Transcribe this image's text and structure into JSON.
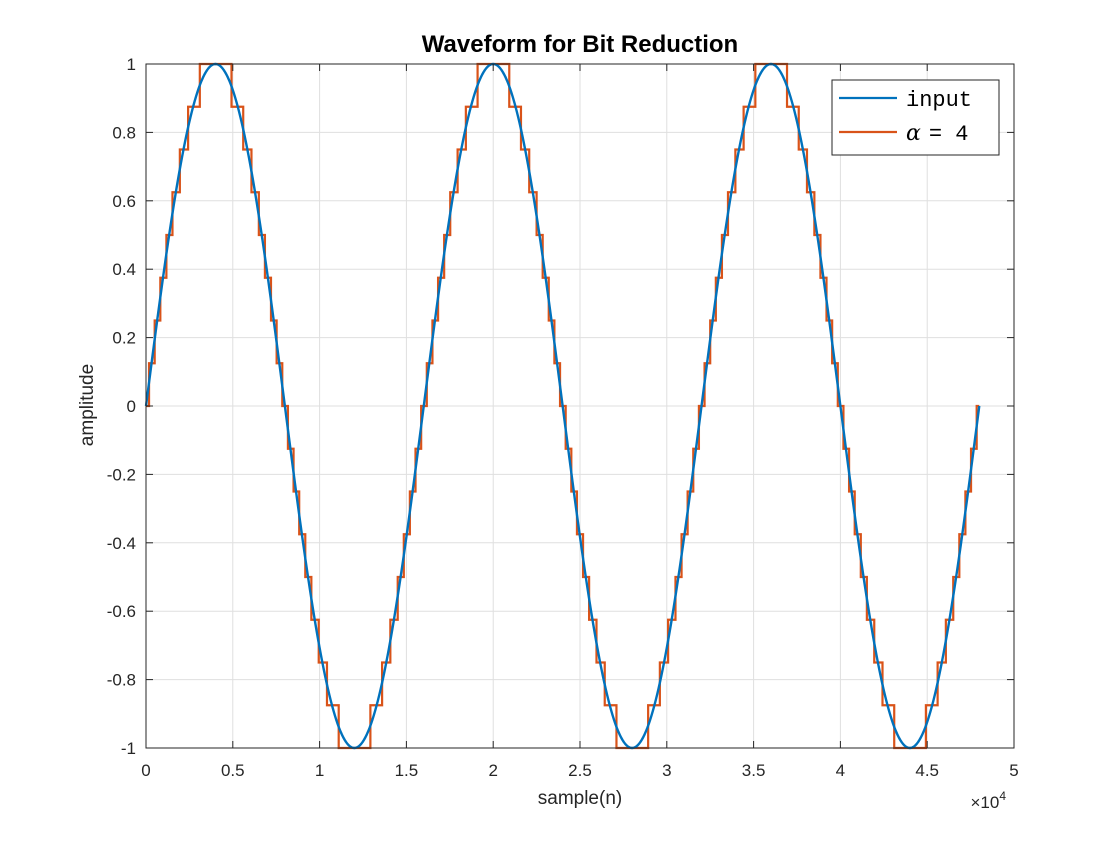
{
  "chart_data": {
    "type": "line",
    "title": "Waveform for Bit Reduction",
    "xlabel": "sample(n)",
    "ylabel": "amplitude",
    "xlim": [
      0,
      50000
    ],
    "ylim": [
      -1,
      1
    ],
    "x_ticks": [
      0,
      5000,
      10000,
      15000,
      20000,
      25000,
      30000,
      35000,
      40000,
      45000,
      50000
    ],
    "x_tick_labels": [
      "0",
      "0.5",
      "1",
      "1.5",
      "2",
      "2.5",
      "3",
      "3.5",
      "4",
      "4.5",
      "5"
    ],
    "y_ticks": [
      -1,
      -0.8,
      -0.6,
      -0.4,
      -0.2,
      0,
      0.2,
      0.4,
      0.6,
      0.8,
      1
    ],
    "y_tick_labels": [
      "-1",
      "-0.8",
      "-0.6",
      "-0.4",
      "-0.2",
      "0",
      "0.2",
      "0.4",
      "0.6",
      "0.8",
      "1"
    ],
    "x_exponent": {
      "base": "×10",
      "power": "4"
    },
    "grid": true,
    "legend_position": "top-right",
    "series": [
      {
        "name": "input",
        "kind": "sine",
        "color": "#0072BD",
        "amplitude": 1,
        "period_samples": 16000,
        "n_samples": 48000
      },
      {
        "name": "= 4",
        "name_symbol": "α",
        "kind": "quantized-sine",
        "color": "#D95319",
        "amplitude": 1,
        "period_samples": 16000,
        "n_samples": 48000,
        "alpha": 4,
        "step_size": 0.125
      }
    ]
  }
}
